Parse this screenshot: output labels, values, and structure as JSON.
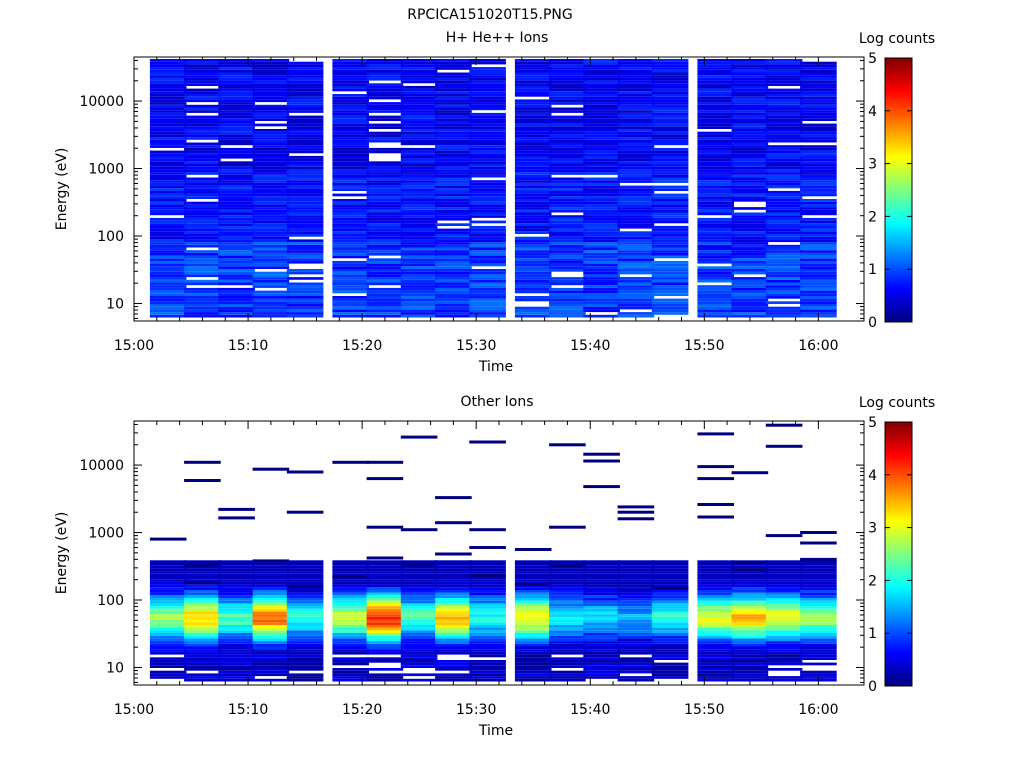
{
  "title": "RPCICA151020T15.PNG",
  "colors": {
    "colormap": [
      "#00007f",
      "#0000ff",
      "#007fff",
      "#00ffff",
      "#7fff7f",
      "#ffff00",
      "#ff7f00",
      "#ff0000",
      "#7f0000"
    ],
    "background": "#ffffff",
    "axis": "#000000"
  },
  "chart_data": [
    {
      "type": "heatmap",
      "title": "H+ He++ Ions",
      "xlabel": "Time",
      "ylabel": "Energy (eV)",
      "x_ticks": [
        "15:00",
        "15:10",
        "15:20",
        "15:30",
        "15:40",
        "15:50",
        "16:00"
      ],
      "y_ticks": [
        "10",
        "100",
        "1000",
        "10000"
      ],
      "y_scale": "log",
      "xlim": [
        "15:00",
        "16:04"
      ],
      "ylim": [
        5.5,
        45000
      ],
      "time_bins": [
        "15:03",
        "15:06",
        "15:09",
        "15:12",
        "15:15",
        "15:19",
        "15:22",
        "15:25",
        "15:28",
        "15:31",
        "15:35",
        "15:38",
        "15:41",
        "15:44",
        "15:47",
        "15:51",
        "15:54",
        "15:57",
        "16:00"
      ],
      "energy_range": [
        6.2,
        42000
      ],
      "energy_bins": 96,
      "level_low": [
        0.6,
        1.2
      ],
      "level_mid": [
        0.45,
        0.95
      ],
      "level_high": [
        0.3,
        0.85
      ],
      "blank_fraction": 0.06,
      "colorbar": {
        "label": "Log counts",
        "ticks": [
          "0",
          "1",
          "2",
          "3",
          "4",
          "5"
        ],
        "range": [
          0,
          5
        ]
      }
    },
    {
      "type": "heatmap",
      "title": "Other Ions",
      "xlabel": "Time",
      "ylabel": "Energy (eV)",
      "x_ticks": [
        "15:00",
        "15:10",
        "15:20",
        "15:30",
        "15:40",
        "15:50",
        "16:00"
      ],
      "y_ticks": [
        "10",
        "100",
        "1000",
        "10000"
      ],
      "y_scale": "log",
      "xlim": [
        "15:00",
        "16:04"
      ],
      "ylim": [
        5.5,
        45000
      ],
      "time_bins": [
        "15:03",
        "15:06",
        "15:09",
        "15:12",
        "15:15",
        "15:19",
        "15:22",
        "15:25",
        "15:28",
        "15:31",
        "15:35",
        "15:38",
        "15:41",
        "15:44",
        "15:47",
        "15:51",
        "15:54",
        "15:57",
        "16:00"
      ],
      "energy_range": [
        6.2,
        42000
      ],
      "energy_bins": 96,
      "blob_energy": [
        15,
        380
      ],
      "blob_peak_energy": 55,
      "blob_peak_levels": [
        2.6,
        3.4,
        2.2,
        3.8,
        2.0,
        2.8,
        4.2,
        2.2,
        3.4,
        2.0,
        3.2,
        1.8,
        1.7,
        1.5,
        2.0,
        3.0,
        3.4,
        3.0,
        2.6
      ],
      "low_energy_level": [
        0.1,
        0.6
      ],
      "sparse_lines": [
        [
          800
        ],
        [
          11000,
          5900,
          330,
          180
        ],
        [
          2200,
          1650
        ],
        [
          8700,
          380
        ],
        [
          7900,
          2000,
          160
        ],
        [
          11000,
          220
        ],
        [
          11000,
          6300,
          1200,
          420
        ],
        [
          26000,
          1100,
          330
        ],
        [
          3300,
          1400,
          480
        ],
        [
          22000,
          1100,
          600,
          230
        ],
        [
          560,
          170
        ],
        [
          20000,
          1200,
          320
        ],
        [
          14500,
          11500,
          4800
        ],
        [
          2400,
          2000,
          1600
        ],
        [
          150
        ],
        [
          29000,
          9500,
          6300,
          2600,
          1700
        ],
        [
          7700,
          360,
          280
        ],
        [
          39000,
          19000,
          900
        ],
        [
          1000,
          700,
          400
        ]
      ],
      "colorbar": {
        "label": "Log counts",
        "ticks": [
          "0",
          "1",
          "2",
          "3",
          "4",
          "5"
        ],
        "range": [
          0,
          5
        ]
      }
    }
  ]
}
